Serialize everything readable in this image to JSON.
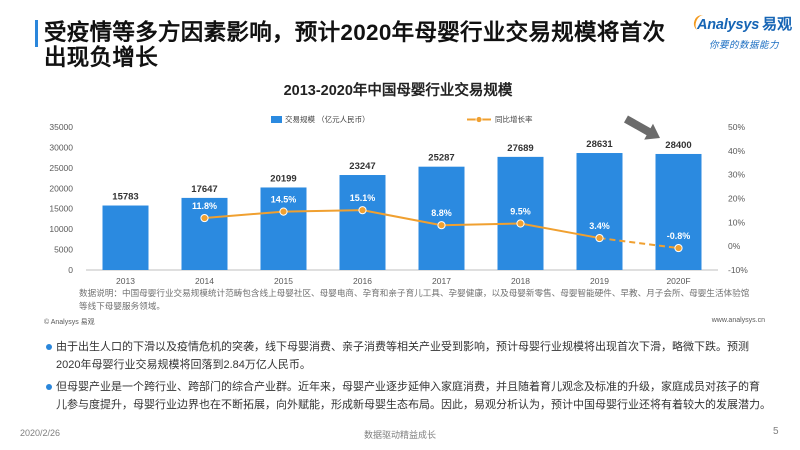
{
  "slide": {
    "title_lines": [
      "受疫情等多方因素影响，预计2020年母婴行业交易规模将首次",
      "出现负增长"
    ]
  },
  "logo": {
    "brand": "Analysys",
    "brand_cn": "易观",
    "tagline": "你要的数据能力"
  },
  "chart_data": {
    "type": "bar",
    "title": "2013-2020年中国母婴行业交易规模",
    "categories": [
      "2013",
      "2014",
      "2015",
      "2016",
      "2017",
      "2018",
      "2019",
      "2020F"
    ],
    "series": [
      {
        "name": "交易规模 （亿元人民币）",
        "type": "bar",
        "axis": "left",
        "color": "#2b8ae0",
        "values": [
          15783,
          17647,
          20199,
          23247,
          25287,
          27689,
          28631,
          28400
        ]
      },
      {
        "name": "同比增长率",
        "type": "line",
        "axis": "right",
        "color": "#f0a030",
        "values": [
          null,
          11.8,
          14.5,
          15.1,
          8.8,
          9.5,
          3.4,
          -0.8
        ],
        "labels": [
          null,
          "11.8%",
          "14.5%",
          "15.1%",
          "8.8%",
          "9.5%",
          "3.4%",
          "-0.8%"
        ],
        "dashed_last_segment": true
      }
    ],
    "y_left": {
      "range": [
        0,
        35000
      ],
      "ticks": [
        0,
        5000,
        10000,
        15000,
        20000,
        25000,
        30000,
        35000
      ]
    },
    "y_right": {
      "range": [
        -10,
        50
      ],
      "ticks": [
        -10,
        0,
        10,
        20,
        30,
        40,
        50
      ],
      "tick_labels": [
        "-10%",
        "0%",
        "10%",
        "20%",
        "30%",
        "40%",
        "50%"
      ]
    },
    "grid": false,
    "legend": "top-center"
  },
  "chart_notes": {
    "lines": [
      "数据说明：中国母婴行业交易规模统计范畴包含线上母婴社区、母婴电商、孕育和亲子育儿工具、孕婴健康，以及母婴新零售、母婴智能硬件、早教、月子会所、母婴生活体验馆",
      "等线下母婴服务领域。"
    ],
    "copyright": "© Analysys 易观",
    "website": "www.analysys.cn"
  },
  "bullets": [
    {
      "lines": [
        "由于出生人口的下滑以及疫情危机的突袭，线下母婴消费、亲子消费等相关产业受到影响，预计母婴行业规模将出现首次下滑，略微下跌。预测",
        "2020年母婴行业交易规模将回落到2.84万亿人民币。"
      ]
    },
    {
      "lines": [
        "但母婴产业是一个跨行业、跨部门的综合产业群。近年来，母婴产业逐步延伸入家庭消费，并且随着育儿观念及标准的升级，家庭成员对孩子的育",
        "儿参与度提升，母婴行业边界也在不断拓展，向外赋能，形成新母婴生态布局。因此，易观分析认为，预计中国母婴行业还将有着较大的发展潜力。"
      ]
    }
  ],
  "footer": {
    "date": "2020/2/26",
    "slogan": "数据驱动精益成长",
    "page_number": "5"
  },
  "theme": {
    "accent": "#2a86db",
    "bar": "#2b8ae0",
    "line": "#f0a030",
    "arrow": "#6b6b6b"
  }
}
